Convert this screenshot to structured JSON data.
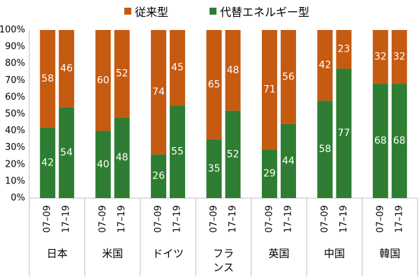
{
  "colors": {
    "conventional": "#c55a11",
    "alternative": "#2e7d32",
    "axis": "#bfbfbf",
    "label_text": "#ffffff"
  },
  "chart_data": {
    "type": "bar",
    "stacked": true,
    "percent": true,
    "ylim": [
      0,
      100
    ],
    "yticks": [
      "0%",
      "10%",
      "20%",
      "30%",
      "40%",
      "50%",
      "60%",
      "70%",
      "80%",
      "90%",
      "100%"
    ],
    "grid": false,
    "legend_position": "top",
    "groups": [
      {
        "name": "日本",
        "name_lines": [
          "日本"
        ]
      },
      {
        "name": "米国",
        "name_lines": [
          "米国"
        ]
      },
      {
        "name": "ドイツ",
        "name_lines": [
          "ドイツ"
        ]
      },
      {
        "name": "フランス",
        "name_lines": [
          "フラ",
          "ンス"
        ]
      },
      {
        "name": "英国",
        "name_lines": [
          "英国"
        ]
      },
      {
        "name": "中国",
        "name_lines": [
          "中国"
        ]
      },
      {
        "name": "韓国",
        "name_lines": [
          "韓国"
        ]
      }
    ],
    "periods": [
      "07–09",
      "17–19"
    ],
    "series": [
      {
        "name": "代替エネルギー型",
        "values": [
          [
            42,
            54
          ],
          [
            40,
            48
          ],
          [
            26,
            55
          ],
          [
            35,
            52
          ],
          [
            29,
            44
          ],
          [
            58,
            77
          ],
          [
            68,
            68
          ]
        ]
      },
      {
        "name": "従来型",
        "values": [
          [
            58,
            46
          ],
          [
            60,
            52
          ],
          [
            74,
            45
          ],
          [
            65,
            48
          ],
          [
            71,
            56
          ],
          [
            42,
            23
          ],
          [
            32,
            32
          ]
        ]
      }
    ]
  }
}
